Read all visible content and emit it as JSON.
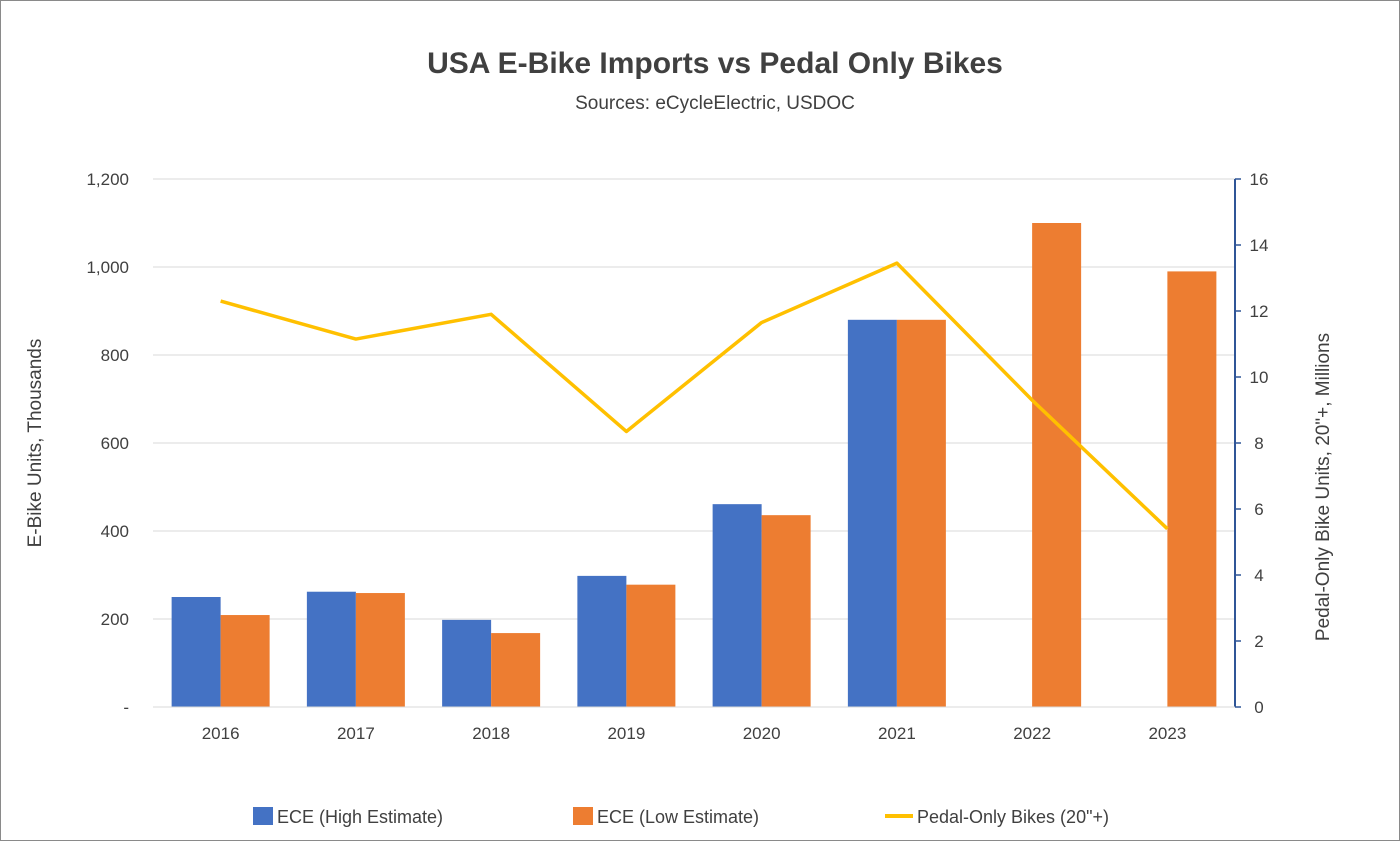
{
  "chart_data": {
    "type": "bar",
    "title": "USA E-Bike Imports vs Pedal Only Bikes",
    "subtitle": "Sources: eCycleElectric, USDOC",
    "categories": [
      "2016",
      "2017",
      "2018",
      "2019",
      "2020",
      "2021",
      "2022",
      "2023"
    ],
    "ylabel": "E-Bike Units, Thousands",
    "y2label": "Pedal-Only Bike Units, 20\"+, Millions",
    "ylim": [
      0,
      1200
    ],
    "yticks": [
      0,
      200,
      400,
      600,
      800,
      1000,
      1200
    ],
    "ytick_labels": [
      "-",
      "200",
      "400",
      "600",
      "800",
      "1,000",
      "1,200"
    ],
    "y2lim": [
      0,
      16
    ],
    "y2ticks": [
      0,
      2,
      4,
      6,
      8,
      10,
      12,
      14,
      16
    ],
    "grid": true,
    "legend_position": "bottom",
    "series": [
      {
        "name": "ECE (High Estimate)",
        "type": "bar",
        "axis": "left",
        "color": "#4472C4",
        "values": [
          250,
          262,
          198,
          298,
          461,
          880,
          null,
          null
        ]
      },
      {
        "name": "ECE (Low Estimate)",
        "type": "bar",
        "axis": "left",
        "color": "#ED7D31",
        "values": [
          209,
          259,
          168,
          278,
          436,
          880,
          1100,
          990
        ]
      },
      {
        "name": "Pedal-Only Bikes (20\"+)",
        "type": "line",
        "axis": "right",
        "color": "#FFC000",
        "values": [
          12.3,
          11.15,
          11.9,
          8.35,
          11.65,
          13.45,
          9.3,
          5.4
        ]
      }
    ]
  }
}
